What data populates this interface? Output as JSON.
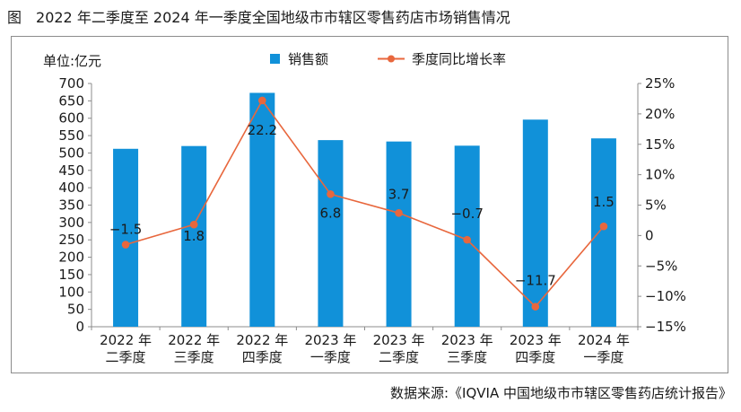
{
  "figure": {
    "prefix": "图",
    "title": "2022 年二季度至 2024 年一季度全国地级市市辖区零售药店市场销售情况",
    "source": "数据来源:《IQVIA 中国地级市市辖区零售药店统计报告》"
  },
  "chart_data": {
    "type": "bar",
    "title": "2022 年二季度至 2024 年一季度全国地级市市辖区零售药店市场销售情况",
    "unit_label": "单位:亿元",
    "categories": [
      [
        "2022 年",
        "二季度"
      ],
      [
        "2022 年",
        "三季度"
      ],
      [
        "2022 年",
        "四季度"
      ],
      [
        "2023 年",
        "一季度"
      ],
      [
        "2023 年",
        "二季度"
      ],
      [
        "2023 年",
        "三季度"
      ],
      [
        "2023 年",
        "四季度"
      ],
      [
        "2024 年",
        "一季度"
      ]
    ],
    "series": [
      {
        "name": "销售额",
        "type": "bar",
        "axis": "left",
        "color": "#1191d9",
        "values": [
          512,
          520,
          673,
          537,
          533,
          521,
          596,
          542
        ]
      },
      {
        "name": "季度同比增长率",
        "type": "line",
        "axis": "right",
        "color": "#e8673d",
        "values": [
          -1.5,
          1.8,
          22.2,
          6.8,
          3.7,
          -0.7,
          -11.7,
          1.5
        ],
        "labels": [
          "−1.5",
          "1.8",
          "22.2",
          "6.8",
          "3.7",
          "−0.7",
          "−11.7",
          "1.5"
        ]
      }
    ],
    "y_left": {
      "min": 0,
      "max": 700,
      "step": 50,
      "tick_labels": [
        "0",
        "50",
        "100",
        "150",
        "200",
        "250",
        "300",
        "350",
        "400",
        "450",
        "500",
        "550",
        "600",
        "650",
        "700"
      ]
    },
    "y_right": {
      "min": -15,
      "max": 25,
      "step": 5,
      "tick_labels": [
        "−15%",
        "−10%",
        "−5%",
        "0",
        "5%",
        "10%",
        "15%",
        "20%",
        "25%"
      ]
    },
    "legend_position": "top-center",
    "grid": false
  }
}
